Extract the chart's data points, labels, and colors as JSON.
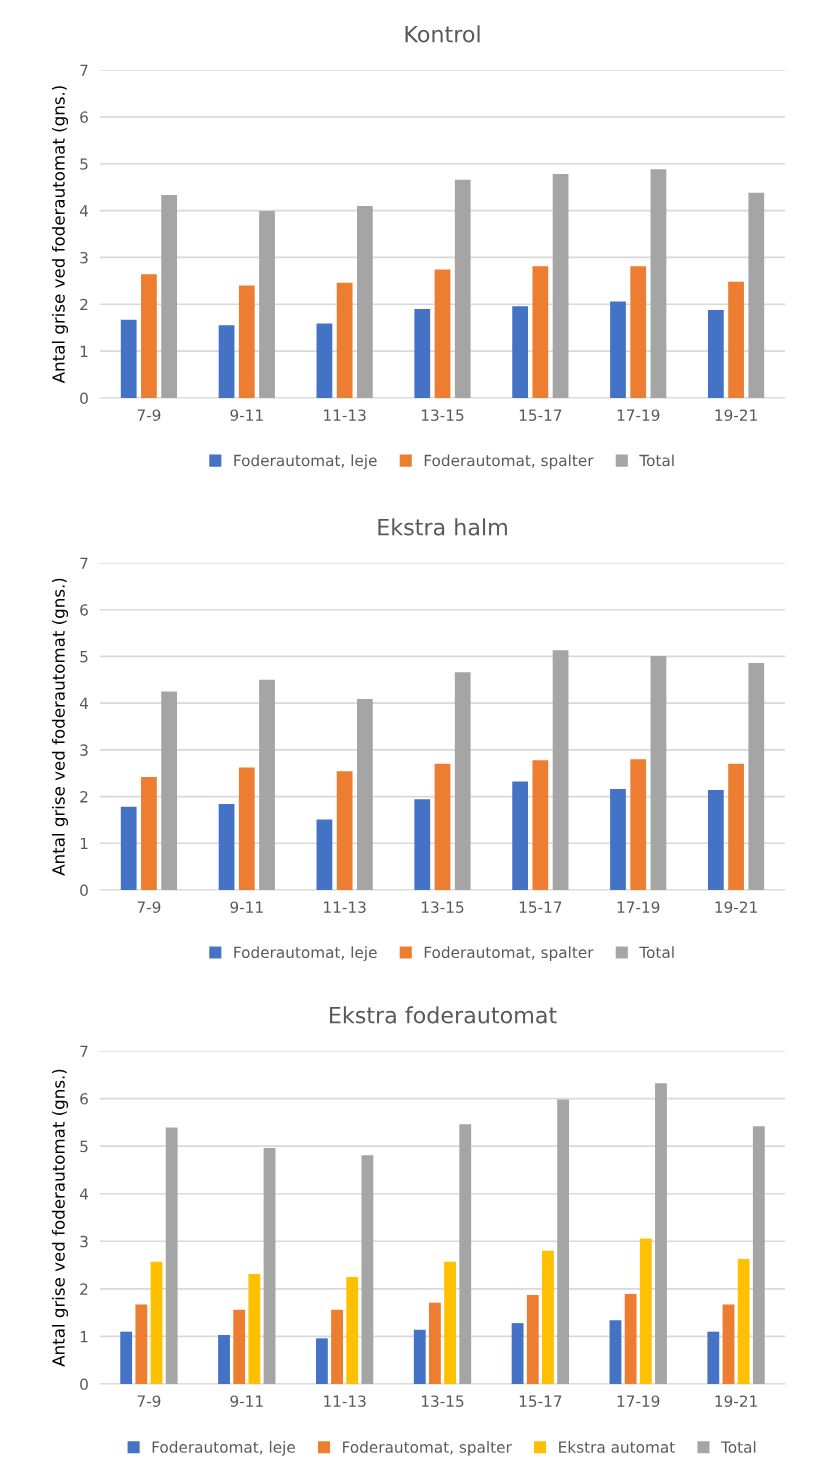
{
  "chart_data": [
    {
      "type": "bar",
      "title": "Kontrol",
      "ylabel": "Antal grise ved foderautomat (gns.)",
      "categories": [
        "7-9",
        "9-11",
        "11-13",
        "13-15",
        "15-17",
        "17-19",
        "19-21"
      ],
      "ylim": [
        0,
        7
      ],
      "yticks": [
        0,
        1,
        2,
        3,
        4,
        5,
        6,
        7
      ],
      "grid": "y",
      "legend": "bottom",
      "series": [
        {
          "name": "Foderautomat, leje",
          "color": "#4472c4",
          "values": [
            1.67,
            1.55,
            1.59,
            1.9,
            1.96,
            2.06,
            1.88
          ]
        },
        {
          "name": "Foderautomat, spalter",
          "color": "#ed7d31",
          "values": [
            2.64,
            2.4,
            2.46,
            2.74,
            2.81,
            2.81,
            2.48
          ]
        },
        {
          "name": "Total",
          "color": "#a5a5a5",
          "values": [
            4.33,
            3.99,
            4.1,
            4.66,
            4.78,
            4.88,
            4.38
          ]
        }
      ]
    },
    {
      "type": "bar",
      "title": "Ekstra halm",
      "ylabel": "Antal grise ved foderautomat (gns.)",
      "categories": [
        "7-9",
        "9-11",
        "11-13",
        "13-15",
        "15-17",
        "17-19",
        "19-21"
      ],
      "ylim": [
        0,
        7
      ],
      "yticks": [
        0,
        1,
        2,
        3,
        4,
        5,
        6,
        7
      ],
      "grid": "y",
      "legend": "bottom",
      "series": [
        {
          "name": "Foderautomat, leje",
          "color": "#4472c4",
          "values": [
            1.78,
            1.84,
            1.51,
            1.94,
            2.32,
            2.16,
            2.14
          ]
        },
        {
          "name": "Foderautomat, spalter",
          "color": "#ed7d31",
          "values": [
            2.42,
            2.62,
            2.54,
            2.7,
            2.78,
            2.8,
            2.7
          ]
        },
        {
          "name": "Total",
          "color": "#a5a5a5",
          "values": [
            4.25,
            4.5,
            4.09,
            4.66,
            5.13,
            5.01,
            4.86
          ]
        }
      ]
    },
    {
      "type": "bar",
      "title": "Ekstra foderautomat",
      "ylabel": "Antal grise ved foderautomat (gns.)",
      "categories": [
        "7-9",
        "9-11",
        "11-13",
        "13-15",
        "15-17",
        "17-19",
        "19-21"
      ],
      "ylim": [
        0,
        7
      ],
      "yticks": [
        0,
        1,
        2,
        3,
        4,
        5,
        6,
        7
      ],
      "grid": "y",
      "legend": "bottom",
      "series": [
        {
          "name": "Foderautomat, leje",
          "color": "#4472c4",
          "values": [
            1.1,
            1.03,
            0.96,
            1.14,
            1.28,
            1.34,
            1.1
          ]
        },
        {
          "name": "Foderautomat, spalter",
          "color": "#ed7d31",
          "values": [
            1.67,
            1.56,
            1.56,
            1.71,
            1.87,
            1.89,
            1.67
          ]
        },
        {
          "name": "Ekstra automat",
          "color": "#ffc000",
          "values": [
            2.57,
            2.31,
            2.25,
            2.57,
            2.8,
            3.06,
            2.63
          ]
        },
        {
          "name": "Total",
          "color": "#a5a5a5",
          "values": [
            5.39,
            4.96,
            4.81,
            5.46,
            5.98,
            6.32,
            5.42
          ]
        }
      ]
    }
  ]
}
